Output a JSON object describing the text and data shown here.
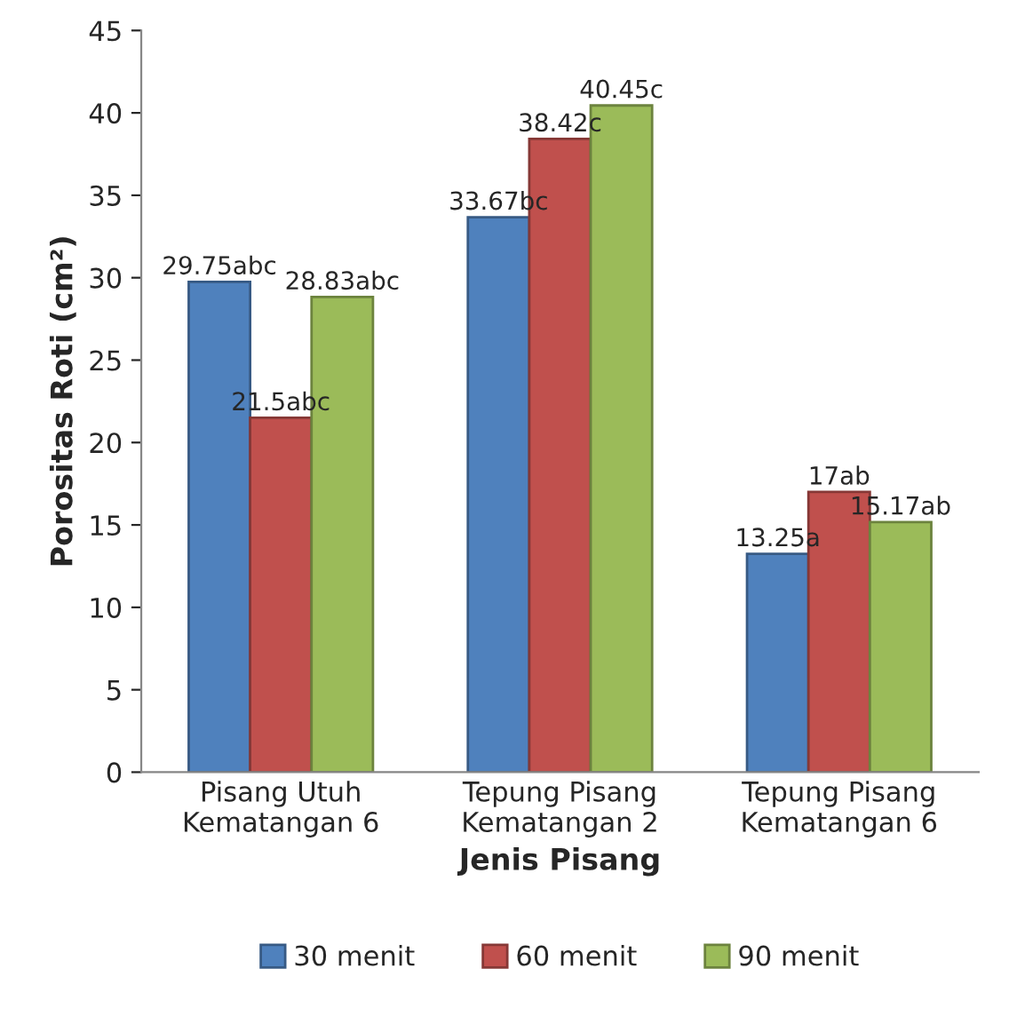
{
  "chart_data": {
    "type": "bar",
    "xlabel": "Jenis Pisang",
    "ylabel": "Porositas Roti (cm²)",
    "categories": [
      "Pisang Utuh\nKematangan 6",
      "Tepung Pisang\nKematangan 2",
      "Tepung Pisang\nKematangan 6"
    ],
    "series": [
      {
        "name": "30 menit",
        "color": "#4f81bd",
        "values": [
          29.75,
          33.67,
          13.25
        ],
        "value_labels": [
          "29.75abc",
          "33.67bc",
          "13.25a"
        ]
      },
      {
        "name": "60 menit",
        "color": "#c0504d",
        "values": [
          21.5,
          38.42,
          17
        ],
        "value_labels": [
          "21.5abc",
          "38.42c",
          "17ab"
        ]
      },
      {
        "name": "90 menit",
        "color": "#9bbb59",
        "values": [
          28.83,
          40.45,
          15.17
        ],
        "value_labels": [
          "28.83abc",
          "40.45c",
          "15.17ab"
        ]
      }
    ],
    "ylim": [
      0,
      45
    ],
    "yticks": [
      0,
      5,
      10,
      15,
      20,
      25,
      30,
      35,
      40,
      45
    ],
    "grid": false,
    "legend": "bottom"
  }
}
